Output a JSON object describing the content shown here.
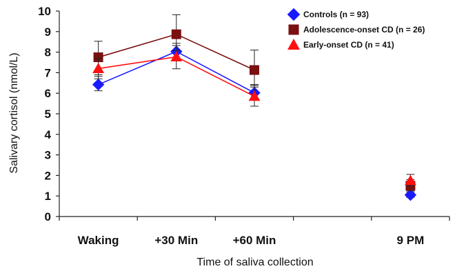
{
  "chart_data": {
    "type": "line",
    "xlabel": "Time of saliva collection",
    "ylabel": "Salivary cortisol (nmol/L)",
    "categories": [
      "Waking",
      "+30 Min",
      "+60 Min",
      "",
      "9 PM"
    ],
    "ylim": [
      0,
      10
    ],
    "yticks": [
      0,
      1,
      2,
      3,
      4,
      5,
      6,
      7,
      8,
      9,
      10
    ],
    "legend_position": "top-right",
    "grid": false,
    "series": [
      {
        "name": "Controls (n = 93)",
        "color": "#1a1aff",
        "marker": "diamond",
        "values": [
          6.42,
          8.03,
          6.02,
          null,
          1.05
        ],
        "err_upper": [
          0.4,
          0.4,
          0.4,
          null,
          0.15
        ],
        "err_lower": [
          0.3,
          0.4,
          0.35,
          null,
          0.12
        ],
        "connected": [
          true,
          true,
          true,
          false,
          false
        ]
      },
      {
        "name": "Adolescence-onset CD (n = 26)",
        "color": "#7a1010",
        "marker": "square",
        "values": [
          7.75,
          8.87,
          7.13,
          null,
          1.5
        ],
        "err_upper": [
          0.78,
          0.95,
          0.97,
          null,
          0.3
        ],
        "err_lower": [
          0.85,
          0.8,
          0.75,
          null,
          0.25
        ],
        "connected": [
          true,
          true,
          true,
          false,
          false
        ]
      },
      {
        "name": "Early-onset CD (n = 41)",
        "color": "#ff1010",
        "marker": "triangle",
        "values": [
          7.2,
          7.77,
          5.85,
          null,
          1.75
        ],
        "err_upper": [
          0.5,
          0.55,
          0.45,
          null,
          0.3
        ],
        "err_lower": [
          0.5,
          0.58,
          0.48,
          null,
          0.25
        ],
        "connected": [
          true,
          true,
          true,
          false,
          false
        ]
      }
    ]
  }
}
